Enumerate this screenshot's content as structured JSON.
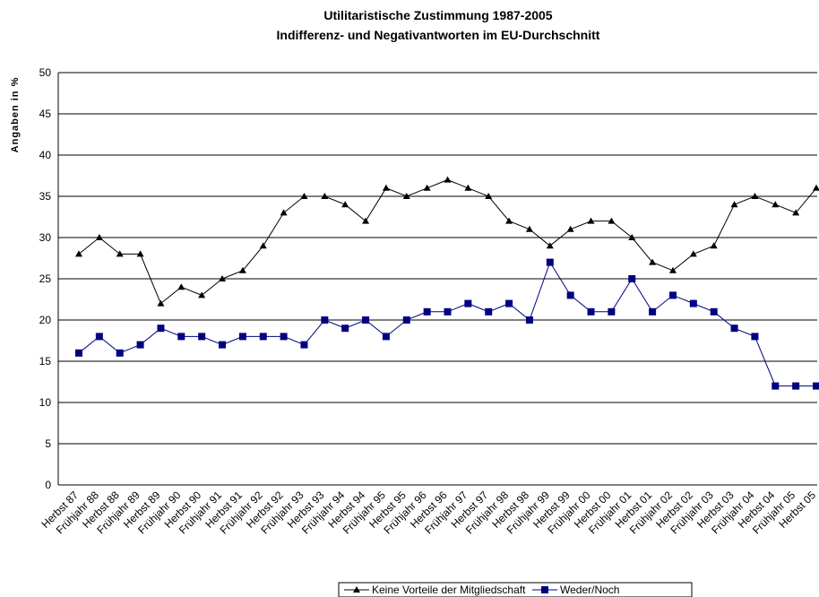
{
  "chart_data": {
    "type": "line",
    "title": "Utilitaristische Zustimmung 1987-2005",
    "subtitle": "Indifferenz- und Negativantworten im EU-Durchschnitt",
    "y_label": "Angaben in %",
    "categories": [
      "Herbst 87",
      "Frühjahr 88",
      "Herbst 88",
      "Frühjahr 89",
      "Herbst 89",
      "Frühjahr 90",
      "Herbst 90",
      "Frühjahr 91",
      "Herbst 91",
      "Frühjahr 92",
      "Herbst 92",
      "Frühjahr 93",
      "Herbst 93",
      "Frühjahr 94",
      "Herbst 94",
      "Frühjahr 95",
      "Herbst 95",
      "Frühjahr 96",
      "Herbst 96",
      "Frühjahr 97",
      "Herbst 97",
      "Frühjahr 98",
      "Herbst 98",
      "Frühjahr 99",
      "Herbst 99",
      "Frühjahr 00",
      "Herbst 00",
      "Frühjahr 01",
      "Herbst 01",
      "Frühjahr 02",
      "Herbst 02",
      "Frühjahr 03",
      "Herbst 03",
      "Frühjahr 04",
      "Herbst 04",
      "Frühjahr 05",
      "Herbst 05"
    ],
    "series": [
      {
        "name": "Keine Vorteile der Mitgliedschaft",
        "color": "#000000",
        "marker": "triangle",
        "values": [
          28,
          30,
          28,
          28,
          22,
          24,
          23,
          25,
          26,
          29,
          33,
          35,
          35,
          34,
          32,
          36,
          35,
          36,
          37,
          36,
          35,
          32,
          31,
          29,
          31,
          32,
          32,
          30,
          27,
          26,
          28,
          29,
          34,
          35,
          34,
          33,
          36
        ]
      },
      {
        "name": "Weder/Noch",
        "color": "#000080",
        "marker": "square",
        "values": [
          16,
          18,
          16,
          17,
          19,
          18,
          18,
          17,
          18,
          18,
          18,
          17,
          20,
          19,
          20,
          18,
          20,
          21,
          21,
          22,
          21,
          22,
          20,
          27,
          23,
          21,
          21,
          25,
          21,
          23,
          22,
          21,
          19,
          18,
          12,
          12,
          12
        ]
      }
    ],
    "ylim": [
      0,
      50
    ],
    "yticks": [
      0,
      5,
      10,
      15,
      20,
      25,
      30,
      35,
      40,
      45,
      50
    ],
    "grid": true
  }
}
